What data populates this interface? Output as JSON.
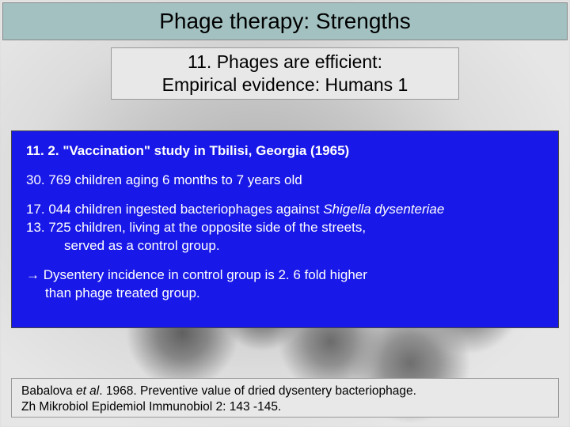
{
  "title": "Phage therapy: Strengths",
  "subtitle_line1": "11. Phages are efficient:",
  "subtitle_line2": "Empirical evidence: Humans 1",
  "content": {
    "heading": "11. 2. \"Vaccination\" study in Tbilisi, Georgia (1965)",
    "line1": "30. 769 children aging 6 months to 7 years old",
    "line2a": "17. 044 children ingested bacteriophages against ",
    "line2b_italic": "Shigella dysenteriae",
    "line3": "13. 725 children, living at the opposite side of the streets,",
    "line4": "served as a control group.",
    "arrow": "→",
    "conclusion1": "Dysentery incidence in control group is 2. 6 fold higher",
    "conclusion2": "than phage treated group."
  },
  "citation": {
    "authors_prefix": "Babalova ",
    "authors_italic": "et al",
    "rest": ". 1968. Preventive value of dried dysentery bacteriophage.",
    "line2": "Zh Mikrobiol Epidemiol Immunobiol 2: 143 -145."
  },
  "colors": {
    "title_bg": "#a3c1c1",
    "subtitle_bg": "#e8e8e8",
    "content_bg": "#1818e8",
    "content_fg": "#ffffff",
    "citation_bg": "#e8e8e8"
  }
}
